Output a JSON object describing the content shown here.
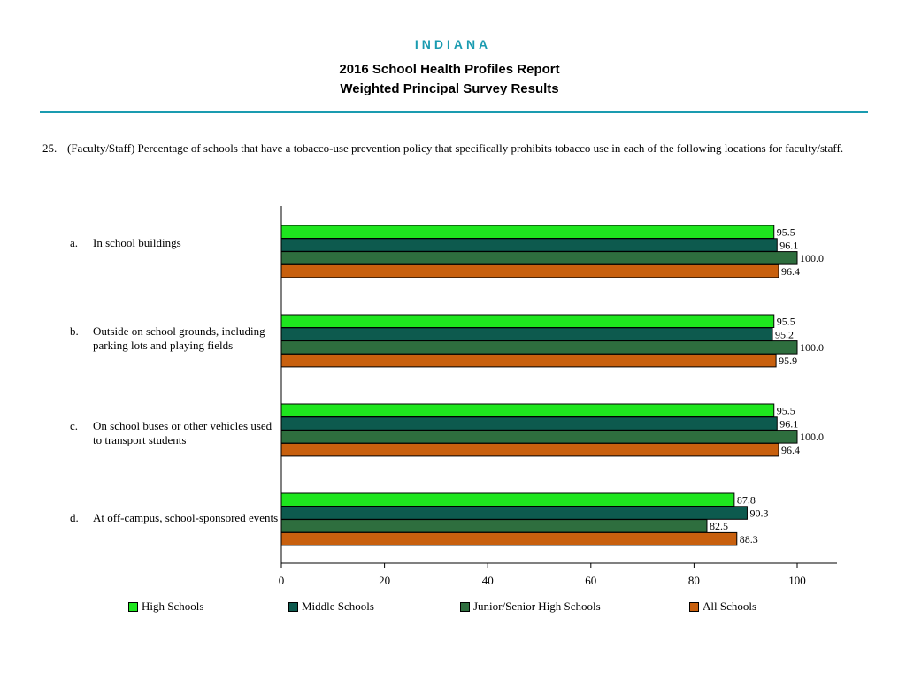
{
  "header": {
    "state": "INDIANA",
    "title_line1": "2016 School Health Profiles Report",
    "title_line2": "Weighted Principal Survey Results"
  },
  "question": {
    "number": "25.",
    "text": "(Faculty/Staff) Percentage of schools that have a tobacco-use prevention policy that specifically prohibits tobacco use in each of the following locations for faculty/staff."
  },
  "categories": [
    {
      "letter": "a.",
      "label": "In school buildings"
    },
    {
      "letter": "b.",
      "label": "Outside on school grounds, including parking lots and playing fields"
    },
    {
      "letter": "c.",
      "label": "On school buses or other vehicles used to transport students"
    },
    {
      "letter": "d.",
      "label": "At off-campus, school-sponsored events"
    }
  ],
  "chart_data": {
    "type": "bar",
    "orientation": "horizontal",
    "categories": [
      "a.",
      "b.",
      "c.",
      "d."
    ],
    "series": [
      {
        "name": "High Schools",
        "color": "#1ee61e",
        "values": [
          95.5,
          95.5,
          95.5,
          87.8
        ]
      },
      {
        "name": "Middle Schools",
        "color": "#0d5a4e",
        "values": [
          96.1,
          95.2,
          96.1,
          90.3
        ]
      },
      {
        "name": "Junior/Senior High Schools",
        "color": "#2e6e3e",
        "values": [
          100.0,
          100.0,
          100.0,
          82.5
        ]
      },
      {
        "name": "All Schools",
        "color": "#c8600e",
        "values": [
          96.4,
          95.9,
          96.4,
          88.3
        ]
      }
    ],
    "value_labels": [
      [
        "95.5",
        "95.5",
        "95.5",
        "87.8"
      ],
      [
        "96.1",
        "95.2",
        "96.1",
        "90.3"
      ],
      [
        "100.0",
        "100.0",
        "100.0",
        "82.5"
      ],
      [
        "96.4",
        "95.9",
        "96.4",
        "88.3"
      ]
    ],
    "xlim": [
      0,
      100
    ],
    "xticks": [
      0,
      20,
      40,
      60,
      80,
      100
    ],
    "legend_position": "bottom"
  }
}
